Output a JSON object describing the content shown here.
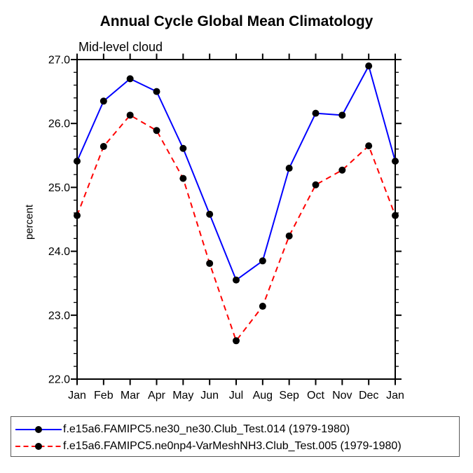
{
  "chart_data": {
    "type": "line",
    "title": "Annual Cycle Global Mean Climatology",
    "subtitle": "Mid-level cloud",
    "ylabel": "percent",
    "xlabel": "",
    "categories": [
      "Jan",
      "Feb",
      "Mar",
      "Apr",
      "May",
      "Jun",
      "Jul",
      "Aug",
      "Sep",
      "Oct",
      "Nov",
      "Dec",
      "Jan"
    ],
    "ylim": [
      22.0,
      27.0
    ],
    "yticks": [
      22.0,
      23.0,
      24.0,
      25.0,
      26.0,
      27.0
    ],
    "ytick_labels": [
      "22.0",
      "23.0",
      "24.0",
      "25.0",
      "26.0",
      "27.0"
    ],
    "y_minor_step": 0.2,
    "grid": false,
    "legend_position": "bottom",
    "axis_color": "#000000",
    "background_color": "#ffffff",
    "series": [
      {
        "name": "f.e15a6.FAMIPC5.ne30_ne30.Club_Test.014 (1979-1980)",
        "color": "#0000ff",
        "line_style": "solid",
        "marker": "circle",
        "marker_color": "#000000",
        "values": [
          25.41,
          26.35,
          26.7,
          26.5,
          25.61,
          24.58,
          23.55,
          23.85,
          25.3,
          26.16,
          26.13,
          26.9,
          25.41
        ]
      },
      {
        "name": "f.e15a6.FAMIPC5.ne0np4-VarMeshNH3.Club_Test.005 (1979-1980)",
        "color": "#ff0000",
        "line_style": "dashed",
        "marker": "circle",
        "marker_color": "#000000",
        "values": [
          24.56,
          25.64,
          26.13,
          25.89,
          25.14,
          23.81,
          22.6,
          23.14,
          24.24,
          25.04,
          25.27,
          25.65,
          24.56
        ]
      }
    ]
  }
}
